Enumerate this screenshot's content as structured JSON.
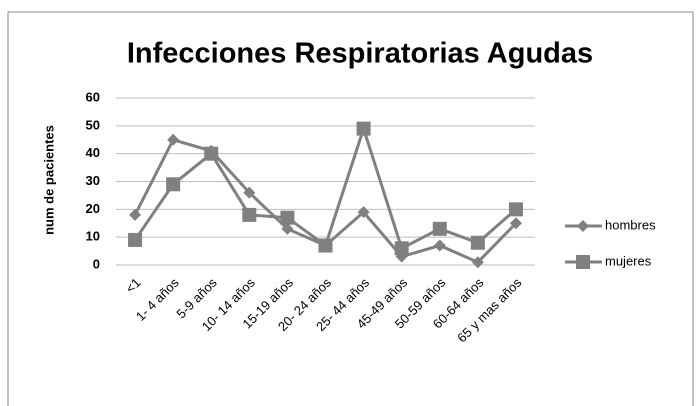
{
  "chart_data": {
    "type": "line",
    "title": "Infecciones Respiratorias Agudas",
    "y_label": "num de pacientes",
    "categories": [
      "<1",
      "1- 4 años",
      "5-9 años",
      "10- 14 años",
      "15-19 años",
      "20- 24 años",
      "25- 44 años",
      "45-49 años",
      "50-59 años",
      "60-64 años",
      "65 y mas años"
    ],
    "series": [
      {
        "name": "hombres",
        "color": "#808080",
        "marker": "diamond",
        "values": [
          18,
          45,
          41,
          26,
          13,
          7,
          19,
          3,
          7,
          1,
          15
        ]
      },
      {
        "name": "mujeres",
        "color": "#808080",
        "marker": "square",
        "values": [
          9,
          29,
          40,
          18,
          17,
          7,
          49,
          6,
          13,
          8,
          20
        ]
      }
    ],
    "ylim": [
      0,
      60
    ],
    "yticks": [
      0,
      10,
      20,
      30,
      40,
      50,
      60
    ],
    "grid": true,
    "legend": "right"
  }
}
